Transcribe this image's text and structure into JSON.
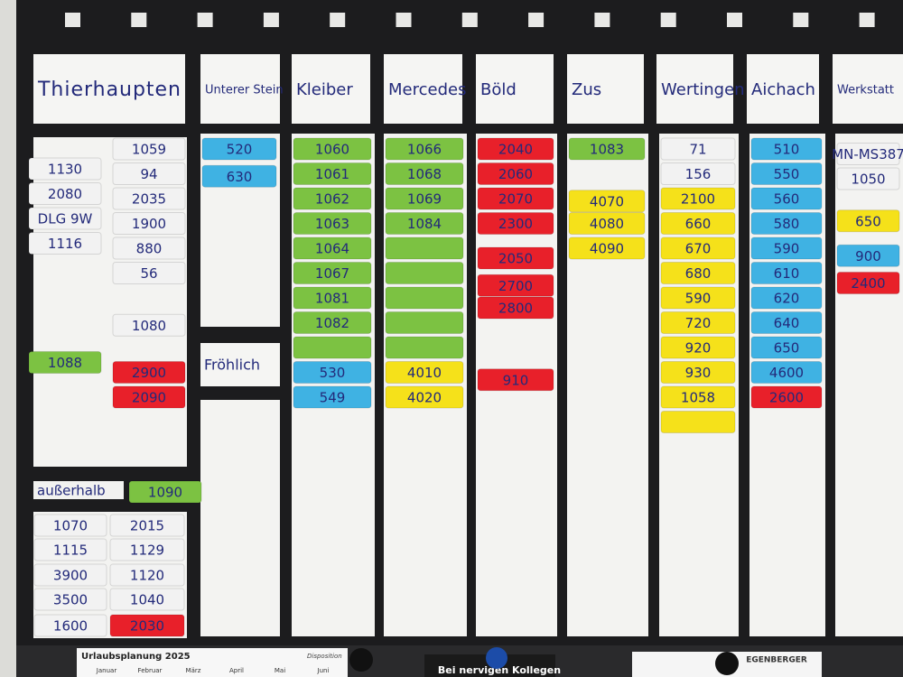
{
  "board": {
    "columns": [
      {
        "header": "Thierhaupten",
        "stacks": [
          [
            {
              "text": "1130",
              "color": "#f2f2f2"
            },
            {
              "text": "2080",
              "color": "#f2f2f2"
            },
            {
              "text": "DLG 9W",
              "color": "#f2f2f2"
            },
            {
              "text": "1116",
              "color": "#f2f2f2"
            },
            {
              "text": "1088",
              "color": "#7cc242"
            }
          ],
          [
            {
              "text": "1059",
              "color": "#f2f2f2"
            },
            {
              "text": "94",
              "color": "#f2f2f2"
            },
            {
              "text": "2035",
              "color": "#f2f2f2"
            },
            {
              "text": "1900",
              "color": "#f2f2f2"
            },
            {
              "text": "880",
              "color": "#f2f2f2"
            },
            {
              "text": "56",
              "color": "#f2f2f2"
            },
            {
              "text": "1080",
              "color": "#f2f2f2"
            },
            {
              "text": "2900",
              "color": "#e8202a"
            },
            {
              "text": "2090",
              "color": "#e8202a"
            }
          ]
        ]
      },
      {
        "header": "Unterer Stein",
        "stacks": [
          [
            {
              "text": "520",
              "color": "#3fb2e3"
            },
            {
              "text": "630",
              "color": "#3fb2e3"
            }
          ]
        ]
      },
      {
        "header": "Kleiber",
        "stacks": [
          [
            {
              "text": "1060",
              "color": "#7cc242"
            },
            {
              "text": "1061",
              "color": "#7cc242"
            },
            {
              "text": "1062",
              "color": "#7cc242"
            },
            {
              "text": "1063",
              "color": "#7cc242"
            },
            {
              "text": "1064",
              "color": "#7cc242"
            },
            {
              "text": "1067",
              "color": "#7cc242"
            },
            {
              "text": "1081",
              "color": "#7cc242"
            },
            {
              "text": "1082",
              "color": "#7cc242"
            },
            {
              "color": "#7cc242"
            },
            {
              "text": "530",
              "color": "#3fb2e3"
            },
            {
              "text": "549",
              "color": "#3fb2e3"
            }
          ]
        ]
      },
      {
        "header": "Mercedes",
        "stacks": [
          [
            {
              "text": "1066",
              "color": "#7cc242"
            },
            {
              "text": "1068",
              "color": "#7cc242"
            },
            {
              "text": "1069",
              "color": "#7cc242"
            },
            {
              "text": "1084",
              "color": "#7cc242"
            },
            {
              "color": "#7cc242"
            },
            {
              "color": "#7cc242"
            },
            {
              "color": "#7cc242"
            },
            {
              "color": "#7cc242"
            },
            {
              "color": "#7cc242"
            },
            {
              "text": "4010",
              "color": "#f5e11a"
            },
            {
              "text": "4020",
              "color": "#f5e11a"
            }
          ]
        ]
      },
      {
        "header": "Böld",
        "stacks": [
          [
            {
              "text": "2040",
              "color": "#e8202a"
            },
            {
              "text": "2060",
              "color": "#e8202a"
            },
            {
              "text": "2070",
              "color": "#e8202a"
            },
            {
              "text": "2300",
              "color": "#e8202a"
            },
            {
              "text": "2050",
              "color": "#e8202a"
            },
            {
              "text": "2700",
              "color": "#e8202a"
            },
            {
              "text": "2800",
              "color": "#e8202a"
            },
            {
              "text": "910",
              "color": "#e8202a"
            }
          ]
        ]
      },
      {
        "header": "Zus",
        "stacks": [
          [
            {
              "text": "1083",
              "color": "#7cc242"
            },
            {
              "text": "4070",
              "color": "#f5e11a"
            },
            {
              "text": "4080",
              "color": "#f5e11a"
            },
            {
              "text": "4090",
              "color": "#f5e11a"
            }
          ]
        ]
      },
      {
        "header": "Wertingen",
        "stacks": [
          [
            {
              "text": "71",
              "color": "#f2f2f2"
            },
            {
              "text": "156",
              "color": "#f2f2f2"
            },
            {
              "text": "2100",
              "color": "#f5e11a"
            },
            {
              "text": "660",
              "color": "#f5e11a"
            },
            {
              "text": "670",
              "color": "#f5e11a"
            },
            {
              "text": "680",
              "color": "#f5e11a"
            },
            {
              "text": "590",
              "color": "#f5e11a"
            },
            {
              "text": "720",
              "color": "#f5e11a"
            },
            {
              "text": "920",
              "color": "#f5e11a"
            },
            {
              "text": "930",
              "color": "#f5e11a"
            },
            {
              "text": "1058",
              "color": "#f5e11a"
            },
            {
              "color": "#f5e11a"
            }
          ]
        ]
      },
      {
        "header": "Aichach",
        "stacks": [
          [
            {
              "text": "510",
              "color": "#3fb2e3"
            },
            {
              "text": "550",
              "color": "#3fb2e3"
            },
            {
              "text": "560",
              "color": "#3fb2e3"
            },
            {
              "text": "580",
              "color": "#3fb2e3"
            },
            {
              "text": "590",
              "color": "#3fb2e3"
            },
            {
              "text": "610",
              "color": "#3fb2e3"
            },
            {
              "text": "620",
              "color": "#3fb2e3"
            },
            {
              "text": "640",
              "color": "#3fb2e3"
            },
            {
              "text": "650",
              "color": "#3fb2e3"
            },
            {
              "text": "4600",
              "color": "#3fb2e3"
            },
            {
              "text": "2600",
              "color": "#e8202a"
            }
          ]
        ]
      },
      {
        "header": "Werkstatt",
        "stacks": [
          [
            {
              "text": "MN-MS387",
              "color": "#f2f2f2"
            },
            {
              "text": "1050",
              "color": "#f2f2f2"
            },
            {
              "text": "650",
              "color": "#f5e11a"
            },
            {
              "text": "900",
              "color": "#3fb2e3"
            },
            {
              "text": "2400",
              "color": "#e8202a"
            }
          ]
        ]
      }
    ],
    "subheader": "Fröhlich",
    "outside": {
      "label": "außerhalb",
      "magnet": {
        "text": "1090",
        "color": "#7cc242"
      }
    },
    "lower": {
      "stacks": [
        [
          {
            "text": "1070",
            "color": "#f2f2f2"
          },
          {
            "text": "1115",
            "color": "#f2f2f2"
          },
          {
            "text": "3900",
            "color": "#f2f2f2"
          },
          {
            "text": "3500",
            "color": "#f2f2f2"
          },
          {
            "text": "1600",
            "color": "#f2f2f2"
          }
        ],
        [
          {
            "text": "2015",
            "color": "#f2f2f2"
          },
          {
            "text": "1129",
            "color": "#f2f2f2"
          },
          {
            "text": "1120",
            "color": "#f2f2f2"
          },
          {
            "text": "1040",
            "color": "#f2f2f2"
          },
          {
            "text": "2030",
            "color": "#e8202a"
          }
        ]
      ]
    }
  },
  "calendar": {
    "title": "Urlaubsplanung 2025",
    "subtitle": "Disposition",
    "months": [
      "Januar",
      "Februar",
      "März",
      "April",
      "Mai",
      "Juni"
    ]
  },
  "sign": "Bei nervigen Kollegen",
  "brand": "EGENBERGER"
}
